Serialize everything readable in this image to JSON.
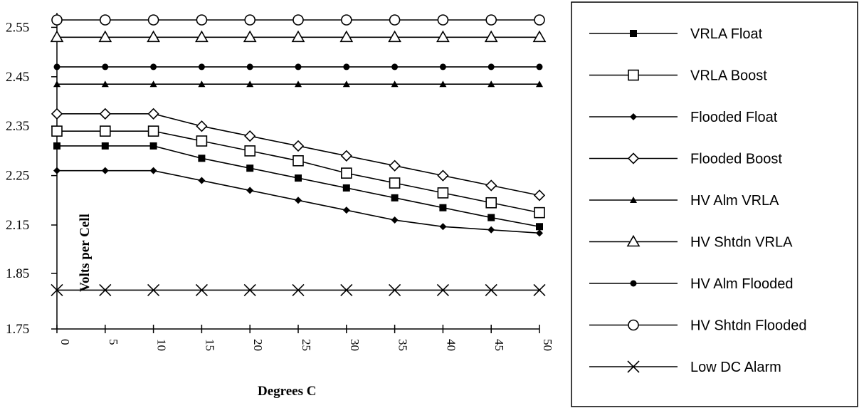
{
  "chart_data": {
    "type": "line",
    "xlabel": "Degrees C",
    "ylabel": "Volts per Cell",
    "x": [
      0,
      5,
      10,
      15,
      20,
      25,
      30,
      35,
      40,
      45,
      50
    ],
    "y_ticks": [
      "2.55",
      "2.45",
      "2.35",
      "2.25",
      "2.15",
      "1.85",
      "1.75"
    ],
    "x_ticks": [
      "0",
      "5",
      "10",
      "15",
      "20",
      "25",
      "30",
      "35",
      "40",
      "45",
      "50"
    ],
    "legend_position": "right",
    "grid": false,
    "series": [
      {
        "name": "VRLA Float",
        "marker": "filled-square",
        "values": [
          2.31,
          2.31,
          2.31,
          2.285,
          2.265,
          2.245,
          2.225,
          2.205,
          2.185,
          2.165,
          2.14
        ]
      },
      {
        "name": "VRLA Boost",
        "marker": "open-square",
        "values": [
          2.34,
          2.34,
          2.34,
          2.32,
          2.3,
          2.28,
          2.255,
          2.235,
          2.215,
          2.195,
          2.175
        ]
      },
      {
        "name": "Flooded Float",
        "marker": "filled-diamond",
        "values": [
          2.26,
          2.26,
          2.26,
          2.24,
          2.22,
          2.2,
          2.18,
          2.16,
          2.14,
          2.12,
          2.1
        ]
      },
      {
        "name": "Flooded Boost",
        "marker": "open-diamond",
        "values": [
          2.375,
          2.375,
          2.375,
          2.35,
          2.33,
          2.31,
          2.29,
          2.27,
          2.25,
          2.23,
          2.21
        ]
      },
      {
        "name": "HV Alm VRLA",
        "marker": "filled-triangle",
        "values": [
          2.435,
          2.435,
          2.435,
          2.435,
          2.435,
          2.435,
          2.435,
          2.435,
          2.435,
          2.435,
          2.435
        ]
      },
      {
        "name": "HV Shtdn VRLA",
        "marker": "open-triangle",
        "values": [
          2.53,
          2.53,
          2.53,
          2.53,
          2.53,
          2.53,
          2.53,
          2.53,
          2.53,
          2.53,
          2.53
        ]
      },
      {
        "name": "HV Alm Flooded",
        "marker": "filled-circle",
        "values": [
          2.47,
          2.47,
          2.47,
          2.47,
          2.47,
          2.47,
          2.47,
          2.47,
          2.47,
          2.47,
          2.47
        ]
      },
      {
        "name": "HV Shtdn Flooded",
        "marker": "open-circle",
        "values": [
          2.565,
          2.565,
          2.565,
          2.565,
          2.565,
          2.565,
          2.565,
          2.565,
          2.565,
          2.565,
          2.565
        ]
      },
      {
        "name": "Low DC Alarm",
        "marker": "x",
        "values": [
          1.82,
          1.82,
          1.82,
          1.82,
          1.82,
          1.82,
          1.82,
          1.82,
          1.82,
          1.82,
          1.82
        ]
      }
    ]
  }
}
